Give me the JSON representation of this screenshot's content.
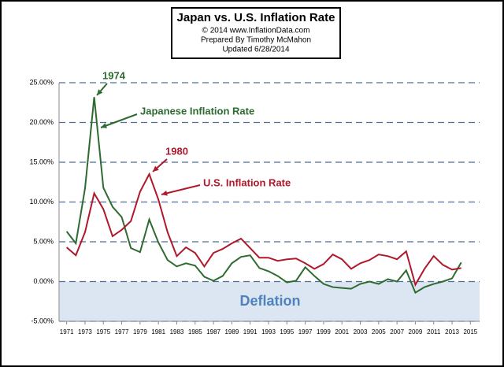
{
  "chart_data": {
    "type": "line",
    "title": "Japan vs. U.S.  Inflation Rate",
    "credits": [
      "© 2014  www.InflationData.com",
      "Prepared  By Timothy McMahon",
      "Updated   6/28/2014"
    ],
    "annotations": [
      "1974",
      "1980",
      "Deflation"
    ],
    "x": [
      1971,
      1972,
      1973,
      1974,
      1975,
      1976,
      1977,
      1978,
      1979,
      1980,
      1981,
      1982,
      1983,
      1984,
      1985,
      1986,
      1987,
      1988,
      1989,
      1990,
      1991,
      1992,
      1993,
      1994,
      1995,
      1996,
      1997,
      1998,
      1999,
      2000,
      2001,
      2002,
      2003,
      2004,
      2005,
      2006,
      2007,
      2008,
      2009,
      2010,
      2011,
      2012,
      2013,
      2014
    ],
    "series": [
      {
        "name": "Japanese Inflation Rate",
        "color": "#2e6b30",
        "values": [
          6.3,
          4.8,
          11.7,
          23.2,
          11.8,
          9.4,
          8.1,
          4.2,
          3.7,
          7.8,
          4.9,
          2.7,
          1.9,
          2.3,
          2.0,
          0.6,
          0.1,
          0.7,
          2.3,
          3.1,
          3.3,
          1.7,
          1.3,
          0.7,
          -0.1,
          0.1,
          1.8,
          0.7,
          -0.3,
          -0.7,
          -0.8,
          -0.9,
          -0.3,
          0.0,
          -0.3,
          0.3,
          0.0,
          1.4,
          -1.4,
          -0.7,
          -0.3,
          0.0,
          0.4,
          2.4
        ]
      },
      {
        "name": "U.S.  Inflation Rate",
        "color": "#b0182c",
        "values": [
          4.3,
          3.3,
          6.2,
          11.1,
          9.1,
          5.7,
          6.5,
          7.6,
          11.3,
          13.5,
          10.3,
          6.2,
          3.2,
          4.3,
          3.6,
          1.9,
          3.6,
          4.1,
          4.8,
          5.4,
          4.2,
          3.0,
          3.0,
          2.6,
          2.8,
          2.9,
          2.3,
          1.6,
          2.2,
          3.4,
          2.8,
          1.6,
          2.3,
          2.7,
          3.4,
          3.2,
          2.8,
          3.8,
          -0.4,
          1.6,
          3.2,
          2.1,
          1.5,
          1.7
        ]
      }
    ],
    "xlim": [
      1970,
      2016
    ],
    "xticks": [
      1971,
      1973,
      1975,
      1977,
      1979,
      1981,
      1983,
      1985,
      1987,
      1989,
      1991,
      1993,
      1995,
      1997,
      1999,
      2001,
      2003,
      2005,
      2007,
      2009,
      2011,
      2013,
      2015
    ],
    "ylim": [
      -5,
      25
    ],
    "yticks": [
      {
        "value": -5,
        "label": "-5.00%"
      },
      {
        "value": 0,
        "label": "0.00%"
      },
      {
        "value": 5,
        "label": "5.00%"
      },
      {
        "value": 10,
        "label": "10.00%"
      },
      {
        "value": 15,
        "label": "15.00%"
      },
      {
        "value": 20,
        "label": "20.00%"
      },
      {
        "value": 25,
        "label": "25.00%"
      }
    ],
    "grid": true
  }
}
